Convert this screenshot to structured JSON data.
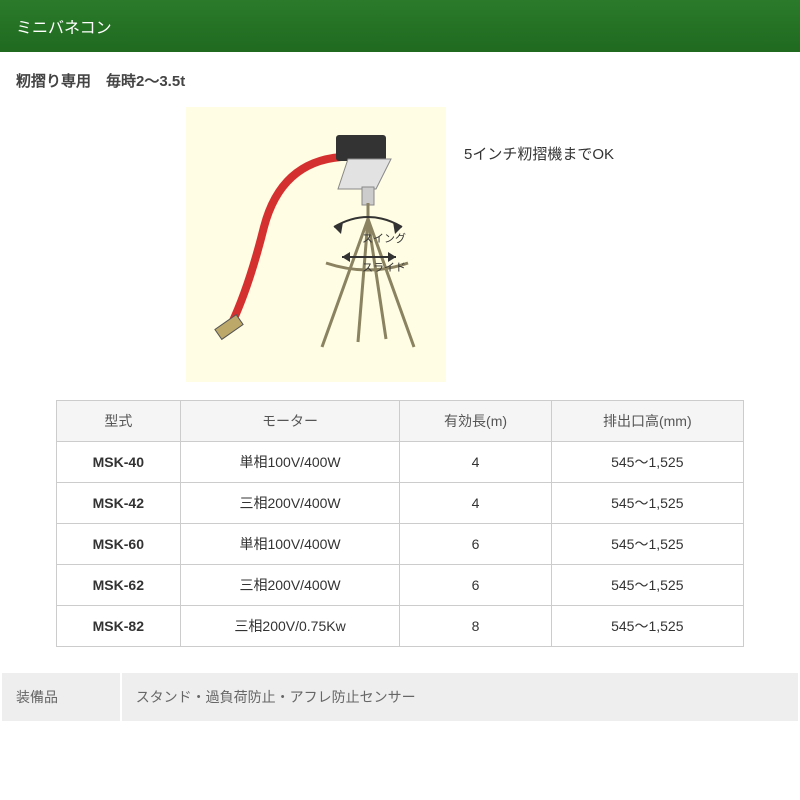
{
  "banner": {
    "title": "ミニバネコン",
    "bg_color": "#277a27",
    "text_color": "#ffffff"
  },
  "subtitle": "籾摺り専用　毎時2～3.5t",
  "figure": {
    "background_color": "#fffde3",
    "caption": "5インチ籾摺機までOK",
    "swing_label": "スイング",
    "slide_label": "スライド",
    "hose_color": "#d53030",
    "stand_color": "#8a8260",
    "motor_color": "#333333"
  },
  "spec_table": {
    "columns": [
      "型式",
      "モーター",
      "有効長(m)",
      "排出口高(mm)"
    ],
    "rows": [
      [
        "MSK-40",
        "単相100V/400W",
        "4",
        "545～1,525"
      ],
      [
        "MSK-42",
        "三相200V/400W",
        "4",
        "545～1,525"
      ],
      [
        "MSK-60",
        "単相100V/400W",
        "6",
        "545～1,525"
      ],
      [
        "MSK-62",
        "三相200V/400W",
        "6",
        "545～1,525"
      ],
      [
        "MSK-82",
        "三相200V/0.75Kw",
        "8",
        "545～1,525"
      ]
    ],
    "col_widths": [
      "18%",
      "32%",
      "22%",
      "28%"
    ]
  },
  "equipment": {
    "label": "装備品",
    "value": "スタンド・過負荷防止・アフレ防止センサー"
  }
}
